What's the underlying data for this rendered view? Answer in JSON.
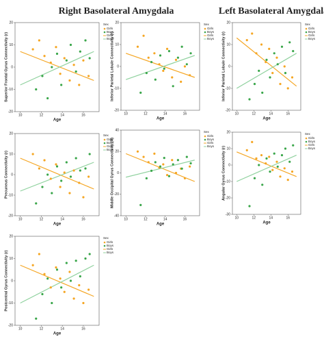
{
  "headers": [
    "Right Basolateral Amygdala",
    "Left Basolateral Amygdala"
  ],
  "chart_data": [
    {
      "type": "scatter",
      "xlabel": "Age",
      "ylabel": "Superior Frontal Gyrus Connectivity (r)",
      "xlim": [
        9.5,
        17.5
      ],
      "xticks": [
        10,
        12,
        14,
        16
      ],
      "ylim": [
        -20,
        20
      ],
      "yticks": [
        -20,
        -10,
        0,
        10,
        20
      ],
      "legend_title": "Sex",
      "series": [
        {
          "name": "Girls",
          "color": "#f5a623",
          "x": [
            11.2,
            11.8,
            12.3,
            12.9,
            13.4,
            13.8,
            14.2,
            14.7,
            15.1,
            15.6,
            16.0,
            16.5
          ],
          "y": [
            8,
            12,
            5,
            2,
            9,
            -3,
            4,
            -6,
            1,
            -8,
            3,
            -4
          ]
        },
        {
          "name": "Boys",
          "color": "#3aa64a",
          "x": [
            11.5,
            12.1,
            12.6,
            13.0,
            13.5,
            13.9,
            14.4,
            14.8,
            15.3,
            15.7,
            16.2,
            16.6
          ],
          "y": [
            -10,
            -4,
            -14,
            0,
            6,
            -8,
            3,
            10,
            -2,
            7,
            12,
            4
          ]
        }
      ],
      "fits": [
        {
          "name": "Girls",
          "color": "#f5a623",
          "x": [
            10,
            17
          ],
          "y": [
            7,
            -6
          ]
        },
        {
          "name": "Boys",
          "color": "#8fd19e",
          "x": [
            10,
            17
          ],
          "y": [
            -8,
            7
          ]
        }
      ]
    },
    {
      "type": "scatter",
      "xlabel": "Age",
      "ylabel": "Inferior Parietal Lobule Connectivity (r)",
      "xlim": [
        9.5,
        17.5
      ],
      "xticks": [
        10,
        12,
        14,
        16
      ],
      "ylim": [
        -20,
        20
      ],
      "yticks": [
        -20,
        -10,
        0,
        10,
        20
      ],
      "legend_title": "Sex",
      "series": [
        {
          "name": "Girls",
          "color": "#f5a623",
          "x": [
            11.2,
            11.8,
            12.3,
            12.9,
            13.4,
            13.8,
            14.2,
            14.7,
            15.1,
            15.6,
            16.0,
            16.5
          ],
          "y": [
            9,
            14,
            4,
            6,
            1,
            -2,
            8,
            -5,
            3,
            -7,
            0,
            -4
          ]
        },
        {
          "name": "Boys",
          "color": "#3aa64a",
          "x": [
            11.5,
            12.1,
            12.6,
            13.0,
            13.5,
            13.9,
            14.4,
            14.8,
            15.3,
            15.7,
            16.2,
            16.6
          ],
          "y": [
            -12,
            -3,
            2,
            -6,
            5,
            -1,
            7,
            -9,
            4,
            9,
            1,
            6
          ]
        }
      ],
      "fits": [
        {
          "name": "Girls",
          "color": "#f5a623",
          "x": [
            10,
            17
          ],
          "y": [
            6,
            -5
          ]
        },
        {
          "name": "Boys",
          "color": "#8fd19e",
          "x": [
            10,
            17
          ],
          "y": [
            -6,
            5
          ]
        }
      ]
    },
    {
      "type": "scatter",
      "xlabel": "Age",
      "ylabel": "Inferior Parietal Lobule Connectivity (r)",
      "xlim": [
        9.5,
        17.5
      ],
      "xticks": [
        10,
        12,
        14,
        16
      ],
      "ylim": [
        -20,
        20
      ],
      "yticks": [
        -20,
        -10,
        0,
        10,
        20
      ],
      "legend_title": "Sex",
      "series": [
        {
          "name": "Girls",
          "color": "#f5a623",
          "x": [
            11.2,
            11.8,
            12.3,
            12.9,
            13.4,
            13.8,
            14.2,
            14.7,
            15.1,
            15.6,
            16.0,
            16.5
          ],
          "y": [
            12,
            15,
            6,
            10,
            2,
            8,
            -3,
            4,
            -8,
            0,
            -10,
            -5
          ]
        },
        {
          "name": "Boys",
          "color": "#3aa64a",
          "x": [
            11.5,
            12.1,
            12.6,
            13.0,
            13.5,
            13.9,
            14.4,
            14.8,
            15.3,
            15.7,
            16.2,
            16.6
          ],
          "y": [
            -15,
            -8,
            -2,
            -12,
            3,
            -5,
            6,
            1,
            9,
            -3,
            11,
            7
          ]
        }
      ],
      "fits": [
        {
          "name": "Girls",
          "color": "#f5a623",
          "x": [
            10,
            17
          ],
          "y": [
            13,
            -9
          ]
        },
        {
          "name": "Boys",
          "color": "#8fd19e",
          "x": [
            10,
            17
          ],
          "y": [
            -10,
            6
          ]
        }
      ]
    },
    {
      "type": "scatter",
      "xlabel": "Age",
      "ylabel": "Precuneus Connectivity (r)",
      "xlim": [
        9.5,
        17.5
      ],
      "xticks": [
        10,
        12,
        14,
        16
      ],
      "ylim": [
        -20,
        20
      ],
      "yticks": [
        -20,
        -10,
        0,
        10,
        20
      ],
      "legend_title": "Sex",
      "series": [
        {
          "name": "Girls",
          "color": "#f5a623",
          "x": [
            11.2,
            11.8,
            12.3,
            12.9,
            13.4,
            13.8,
            14.2,
            14.7,
            15.1,
            15.6,
            16.0,
            16.5
          ],
          "y": [
            10,
            3,
            7,
            -2,
            5,
            -6,
            1,
            -9,
            2,
            -4,
            -11,
            -1
          ]
        },
        {
          "name": "Boys",
          "color": "#3aa64a",
          "x": [
            11.5,
            12.1,
            12.6,
            13.0,
            13.5,
            13.9,
            14.4,
            14.8,
            15.3,
            15.7,
            16.2,
            16.6
          ],
          "y": [
            -14,
            -6,
            0,
            -9,
            4,
            -3,
            6,
            -1,
            8,
            2,
            3,
            10
          ]
        }
      ],
      "fits": [
        {
          "name": "Girls",
          "color": "#f5a623",
          "x": [
            10,
            17
          ],
          "y": [
            8,
            -7
          ]
        },
        {
          "name": "Boys",
          "color": "#8fd19e",
          "x": [
            10,
            17
          ],
          "y": [
            -8,
            6
          ]
        }
      ]
    },
    {
      "type": "scatter",
      "xlabel": "Age",
      "ylabel": "Middle Occipital Gyrus Connectivity (R)",
      "xlim": [
        9.5,
        17.5
      ],
      "xticks": [
        10,
        12,
        14,
        16
      ],
      "ylim": [
        -40,
        40
      ],
      "yticks": [
        -40,
        -20,
        0,
        20,
        40
      ],
      "legend_title": "Sex",
      "series": [
        {
          "name": "Girls",
          "color": "#f5a623",
          "x": [
            11.2,
            11.8,
            12.3,
            12.9,
            13.4,
            13.8,
            14.2,
            14.7,
            15.1,
            15.6,
            16.0,
            16.5
          ],
          "y": [
            20,
            15,
            10,
            18,
            5,
            8,
            -2,
            12,
            0,
            4,
            -5,
            6
          ]
        },
        {
          "name": "Boys",
          "color": "#3aa64a",
          "x": [
            11.5,
            12.1,
            12.6,
            13.0,
            13.5,
            13.9,
            14.4,
            14.8,
            15.3,
            15.7,
            16.2,
            16.6
          ],
          "y": [
            -30,
            -5,
            2,
            10,
            6,
            14,
            -3,
            8,
            12,
            4,
            15,
            9
          ]
        }
      ],
      "fits": [
        {
          "name": "Girls",
          "color": "#f5a623",
          "x": [
            10,
            17
          ],
          "y": [
            18,
            -8
          ]
        },
        {
          "name": "Boys",
          "color": "#8fd19e",
          "x": [
            10,
            17
          ],
          "y": [
            -4,
            12
          ]
        }
      ]
    },
    {
      "type": "scatter",
      "xlabel": "Age",
      "ylabel": "Angular Gyrus Connectivity (r)",
      "xlim": [
        9.5,
        17.5
      ],
      "xticks": [
        10,
        12,
        14,
        16
      ],
      "ylim": [
        -30,
        20
      ],
      "yticks": [
        -30,
        -20,
        -10,
        0,
        10,
        20
      ],
      "legend_title": "Sex",
      "series": [
        {
          "name": "Girls",
          "color": "#f5a623",
          "x": [
            11.2,
            11.8,
            12.3,
            12.9,
            13.4,
            13.8,
            14.2,
            14.7,
            15.1,
            15.6,
            16.0,
            16.5
          ],
          "y": [
            9,
            14,
            4,
            6,
            1,
            5,
            -3,
            2,
            -7,
            -2,
            -9,
            -4
          ]
        },
        {
          "name": "Boys",
          "color": "#3aa64a",
          "x": [
            11.5,
            12.1,
            12.6,
            13.0,
            13.5,
            13.9,
            14.4,
            14.8,
            15.3,
            15.7,
            16.2,
            16.6
          ],
          "y": [
            -25,
            -8,
            0,
            -12,
            4,
            -4,
            7,
            -1,
            6,
            10,
            2,
            12
          ]
        }
      ],
      "fits": [
        {
          "name": "Girls",
          "color": "#f5a623",
          "x": [
            10,
            17
          ],
          "y": [
            8,
            -7
          ]
        },
        {
          "name": "Boys",
          "color": "#8fd19e",
          "x": [
            10,
            17
          ],
          "y": [
            -10,
            6
          ]
        }
      ]
    },
    {
      "type": "scatter",
      "xlabel": "Age",
      "ylabel": "Postcentral Gyrus Connectivity (r)",
      "xlim": [
        9.5,
        17.5
      ],
      "xticks": [
        10,
        12,
        14,
        16
      ],
      "ylim": [
        -20,
        20
      ],
      "yticks": [
        -20,
        -10,
        0,
        10,
        20
      ],
      "legend_title": "Sex",
      "series": [
        {
          "name": "Girls",
          "color": "#f5a623",
          "x": [
            11.2,
            11.8,
            12.3,
            12.9,
            13.4,
            13.8,
            14.2,
            14.7,
            15.1,
            15.6,
            16.0,
            16.5
          ],
          "y": [
            7,
            12,
            3,
            -3,
            6,
            1,
            -5,
            4,
            -8,
            -2,
            -10,
            -4
          ]
        },
        {
          "name": "Boys",
          "color": "#3aa64a",
          "x": [
            11.5,
            12.1,
            12.6,
            13.0,
            13.5,
            13.9,
            14.4,
            14.8,
            15.3,
            15.7,
            16.2,
            16.6
          ],
          "y": [
            -17,
            -6,
            1,
            -10,
            5,
            -3,
            8,
            0,
            9,
            2,
            10,
            12
          ]
        }
      ],
      "fits": [
        {
          "name": "Girls",
          "color": "#f5a623",
          "x": [
            10,
            17
          ],
          "y": [
            7,
            -7
          ]
        },
        {
          "name": "Boys",
          "color": "#8fd19e",
          "x": [
            10,
            17
          ],
          "y": [
            -10,
            7
          ]
        }
      ]
    }
  ]
}
